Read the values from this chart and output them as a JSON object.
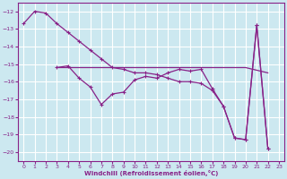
{
  "background_color": "#cce8f0",
  "grid_color": "#ffffff",
  "line_color": "#882288",
  "xlabel": "Windchill (Refroidissement éolien,°C)",
  "xlim": [
    -0.5,
    23.5
  ],
  "ylim": [
    -20.5,
    -11.5
  ],
  "yticks": [
    -20,
    -19,
    -18,
    -17,
    -16,
    -15,
    -14,
    -13,
    -12
  ],
  "xticks": [
    0,
    1,
    2,
    3,
    4,
    5,
    6,
    7,
    8,
    9,
    10,
    11,
    12,
    13,
    14,
    15,
    16,
    17,
    18,
    19,
    20,
    21,
    22,
    23
  ],
  "series1_x": [
    0,
    1,
    2,
    3,
    4,
    5,
    6,
    7,
    8,
    9,
    10,
    11,
    12,
    13,
    14,
    15,
    16,
    17,
    18,
    19,
    20,
    21,
    22
  ],
  "series1_y": [
    -12.7,
    -12.0,
    -12.1,
    -12.7,
    -13.2,
    -13.7,
    -14.2,
    -14.7,
    -15.2,
    -15.3,
    -15.5,
    -15.5,
    -15.6,
    -15.8,
    -16.0,
    -16.0,
    -16.1,
    -16.5,
    -17.4,
    -19.2,
    -19.3,
    -12.8,
    -19.8
  ],
  "series2_x": [
    3,
    4,
    5,
    6,
    7,
    8,
    9,
    10,
    11,
    12,
    13,
    14,
    15,
    16,
    17,
    18,
    19,
    20,
    21,
    22
  ],
  "series2_y": [
    -15.2,
    -15.1,
    -15.8,
    -16.3,
    -17.3,
    -16.7,
    -16.6,
    -15.9,
    -15.7,
    -15.8,
    -15.5,
    -15.3,
    -15.4,
    -15.3,
    -16.4,
    -17.4,
    -19.2,
    -19.3,
    -12.8,
    -19.8
  ],
  "series3_x": [
    3,
    4,
    5,
    6,
    7,
    8,
    9,
    10,
    11,
    12,
    13,
    14,
    15,
    16,
    17,
    18,
    19,
    20,
    22
  ],
  "series3_y": [
    -15.2,
    -15.2,
    -15.2,
    -15.2,
    -15.2,
    -15.2,
    -15.2,
    -15.2,
    -15.2,
    -15.2,
    -15.2,
    -15.2,
    -15.2,
    -15.2,
    -15.2,
    -15.2,
    -15.2,
    -15.2,
    -15.5
  ]
}
